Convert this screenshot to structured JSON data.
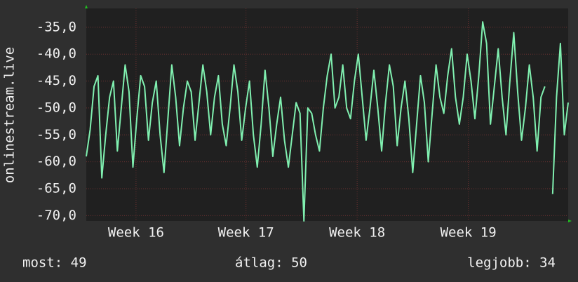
{
  "chart_data": {
    "type": "line",
    "y_label": "onlinestream.live",
    "series": [
      {
        "name": "onlinestream.live",
        "color": "#80f0b0",
        "values": [
          -59,
          -54,
          -46,
          -44,
          -63,
          -55,
          -48,
          -45,
          -58,
          -50,
          -42,
          -47,
          -61,
          -52,
          -44,
          -46,
          -56,
          -49,
          -45,
          -55,
          -62,
          -52,
          -42,
          -48,
          -57,
          -50,
          -45,
          -47,
          -56,
          -49,
          -42,
          -47,
          -55,
          -48,
          -44,
          -53,
          -57,
          -50,
          -42,
          -47,
          -56,
          -50,
          -45,
          -55,
          -61,
          -53,
          -43,
          -50,
          -59,
          -53,
          -48,
          -56,
          -61,
          -55,
          -49,
          -51,
          -71,
          -50,
          -51,
          -55,
          -58,
          -50,
          -44,
          -40,
          -50,
          -48,
          -42,
          -50,
          -52,
          -45,
          -40,
          -48,
          -56,
          -50,
          -43,
          -50,
          -58,
          -49,
          -42,
          -46,
          -57,
          -50,
          -45,
          -52,
          -62,
          -53,
          -44,
          -49,
          -60,
          -51,
          -42,
          -48,
          -51,
          -44,
          -39,
          -48,
          -53,
          -48,
          -40,
          -45,
          -52,
          -44,
          -34,
          -38,
          -53,
          -46,
          -39,
          -48,
          -55,
          -45,
          -36,
          -47,
          -56,
          -50,
          -42,
          -48,
          -58,
          -48,
          -46,
          null,
          -66,
          -48,
          -38,
          -55,
          -49
        ]
      }
    ],
    "xlim": [
      0,
      124
    ],
    "xticks": [
      {
        "value": 12.8,
        "label": "Week 16"
      },
      {
        "value": 41.1,
        "label": "Week 17"
      },
      {
        "value": 69.7,
        "label": "Week 18"
      },
      {
        "value": 98.3,
        "label": "Week 19"
      }
    ],
    "ylim": [
      -71,
      -31.5
    ],
    "yticks": [
      {
        "value": -70,
        "label": "-70,0"
      },
      {
        "value": -65,
        "label": "-65,0"
      },
      {
        "value": -60,
        "label": "-60,0"
      },
      {
        "value": -55,
        "label": "-55,0"
      },
      {
        "value": -50,
        "label": "-50,0"
      },
      {
        "value": -45,
        "label": "-45,0"
      },
      {
        "value": -40,
        "label": "-40,0"
      },
      {
        "value": -35,
        "label": "-35,0"
      }
    ],
    "grid": true
  },
  "footer": {
    "current": "most: 49",
    "average": "átlag: 50",
    "best": "legjobb: 34"
  }
}
